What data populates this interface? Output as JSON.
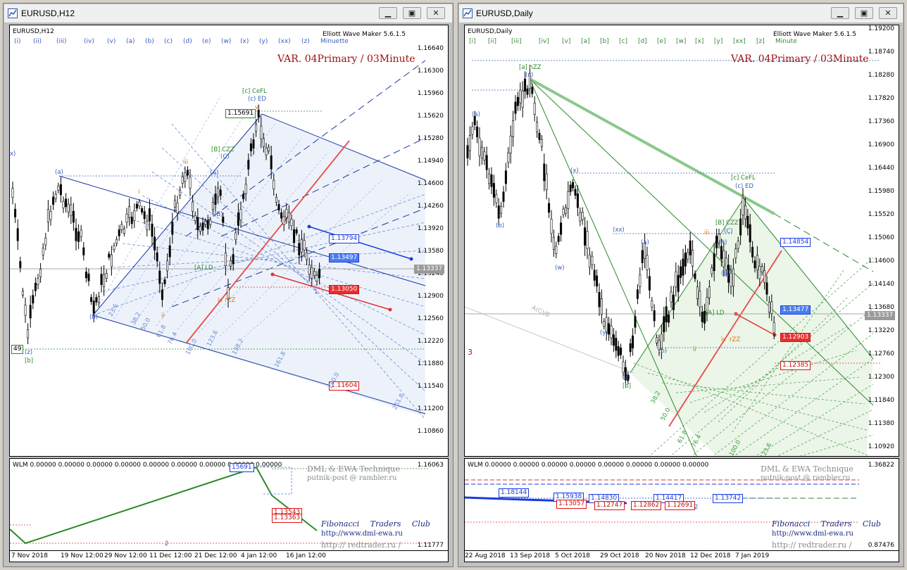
{
  "left": {
    "title": "EURUSD,H12",
    "symbol": "EURUSD,H12",
    "waves": [
      "(i)",
      "(ii)",
      "(iii)",
      "(iv)",
      "(v)",
      "(a)",
      "(b)",
      "(c)",
      "(d)",
      "(e)",
      "(w)",
      "(x)",
      "(y)",
      "(xx)",
      "(z)",
      "Minuette"
    ],
    "wem": "Elliott Wave Maker 5.6.1.5",
    "variant": "VAR. 04Primary / 03Minute",
    "price_axis": [
      "1.16640",
      "1.16300",
      "1.15960",
      "1.15620",
      "1.15280",
      "1.14940",
      "1.14600",
      "1.14260",
      "1.13920",
      "1.13580",
      "1.13240",
      "1.12900",
      "1.12560",
      "1.12220",
      "1.11880",
      "1.11540",
      "1.11200",
      "1.10860"
    ],
    "current_price": "1.13337",
    "price_boxes": {
      "top": "1.15691",
      "blue1": "1.13794",
      "blue2": "1.13497",
      "red1": "1.13050",
      "red2": "1.11604",
      "leftbox": "49"
    },
    "wave_labels": {
      "cefl": "[c] CeFL",
      "ced": "(c) ED",
      "bczz": "[B] CZZ",
      "Aa": "(A)",
      "Bb": "(B)",
      "C": "(C)",
      "ald": "[A] LD",
      "ivrzz": "iv rZZ",
      "iii": "iii",
      "i": "i",
      "ii": "ii",
      "a": "(a)",
      "b": "(b)",
      "z": "(z)",
      "bb": "[b]",
      "x": "x)",
      "one": "1",
      "v": "v"
    },
    "fib": [
      "23.6",
      "38.2",
      "50.0",
      "61.8",
      "76.4",
      "100.0",
      "123.6",
      "138.2",
      "161.8",
      "200.0",
      "261.8"
    ],
    "indicator": {
      "label": "WLM 0.00000 0.00000 0.00000 0.00000 0.00000 0.00000 0.00000 0.00000 0.00000",
      "box": "15691",
      "axis_top": "1.16063",
      "axis_bottom": "1.11777",
      "red_boxes": [
        "1.13543",
        "1.13363"
      ],
      "dml": "DML & EWA Technique",
      "email": "putnik-post @ rambler.ru",
      "ftc": "Fibonacci Traders Club",
      "url": "http://www.dml-ewa.ru",
      "url2": "http:// redtrader.ru /",
      "mark": "2"
    },
    "xaxis": [
      "7 Nov 2018",
      "19 Nov 12:00",
      "29 Nov 12:00",
      "11 Dec 12:00",
      "21 Dec 12:00",
      "4 Jan 12:00",
      "16 Jan 12:00"
    ]
  },
  "right": {
    "title": "EURUSD,Daily",
    "symbol": "EURUSD,Daily",
    "waves": [
      "[i]",
      "[ii]",
      "[iii]",
      "[iv]",
      "[v]",
      "[a]",
      "[b]",
      "[c]",
      "[d]",
      "[e]",
      "[w]",
      "[x]",
      "[y]",
      "[xx]",
      "[z]",
      "Minute"
    ],
    "wem": "Elliott Wave Maker 5.6.1.5",
    "variant": "VAR. 04Primary / 03Minute",
    "price_axis": [
      "1.19200",
      "1.18740",
      "1.18280",
      "1.17820",
      "1.17360",
      "1.16900",
      "1.16440",
      "1.15980",
      "1.15520",
      "1.15060",
      "1.14600",
      "1.14140",
      "1.13680",
      "1.13220",
      "1.12760",
      "1.12300",
      "1.11840",
      "1.11380",
      "1.10920"
    ],
    "current_price": "1.13337",
    "price_boxes": {
      "blue1": "1.14854",
      "blue2": "1.13477",
      "red1": "1.12903",
      "red2": "1.12385"
    },
    "wave_labels": {
      "anzz": "[a] nZZ",
      "c": "(c)",
      "a": "(a)",
      "b": "(b)",
      "x": "(x)",
      "w": "(w)",
      "y": "(y)",
      "xx": "(xx)",
      "aa": "(a)",
      "bb": "(b)",
      "z": "(z)",
      "bbb": "[b]",
      "cefl": "[c] CeFL",
      "ced": "(c) ED",
      "bczz": "[B] CZZ",
      "A": "(A)",
      "B": "(B)",
      "C": "(C)",
      "ald": "[A] LD",
      "iii": "iii",
      "i": "i",
      "ii": "ii",
      "v": "v",
      "rzz": "rZZ",
      "three": "3",
      "iv": "iv",
      "aciib": "A(C)/B"
    },
    "fib": [
      "38.2",
      "50.0",
      "61.8",
      "76.4",
      "100.0",
      "123.6"
    ],
    "indicator": {
      "label": "WLM 0.00000 0.00000 0.00000 0.00000 0.00000 0.00000 0.00000 0.00000",
      "axis_top": "1.36822",
      "axis_bottom": "0.87476",
      "boxes_blue": [
        "1.18144",
        "1.15938",
        "1.14830",
        "1.14417",
        "1.13742"
      ],
      "boxes_red": [
        "1.13057",
        "1.12747",
        "1.12862",
        "1.12691"
      ],
      "dml": "DML & EWA Technique",
      "email": "putnik-post @ rambler.ru",
      "ftc": "Fibonacci Traders Club",
      "url": "http://www.dml-ewa.ru",
      "url2": "http:// redtrader.ru /",
      "mark": "2"
    },
    "xaxis": [
      "22 Aug 2018",
      "13 Sep 2018",
      "5 Oct 2018",
      "29 Oct 2018",
      "20 Nov 2018",
      "12 Dec 2018",
      "7 Jan 2019"
    ]
  },
  "colors": {
    "bull": "#000000",
    "bear": "#000000",
    "channel_blue": "#1a3aa0",
    "fib_red": "#e03030",
    "fan_green": "#2a8a2a"
  }
}
